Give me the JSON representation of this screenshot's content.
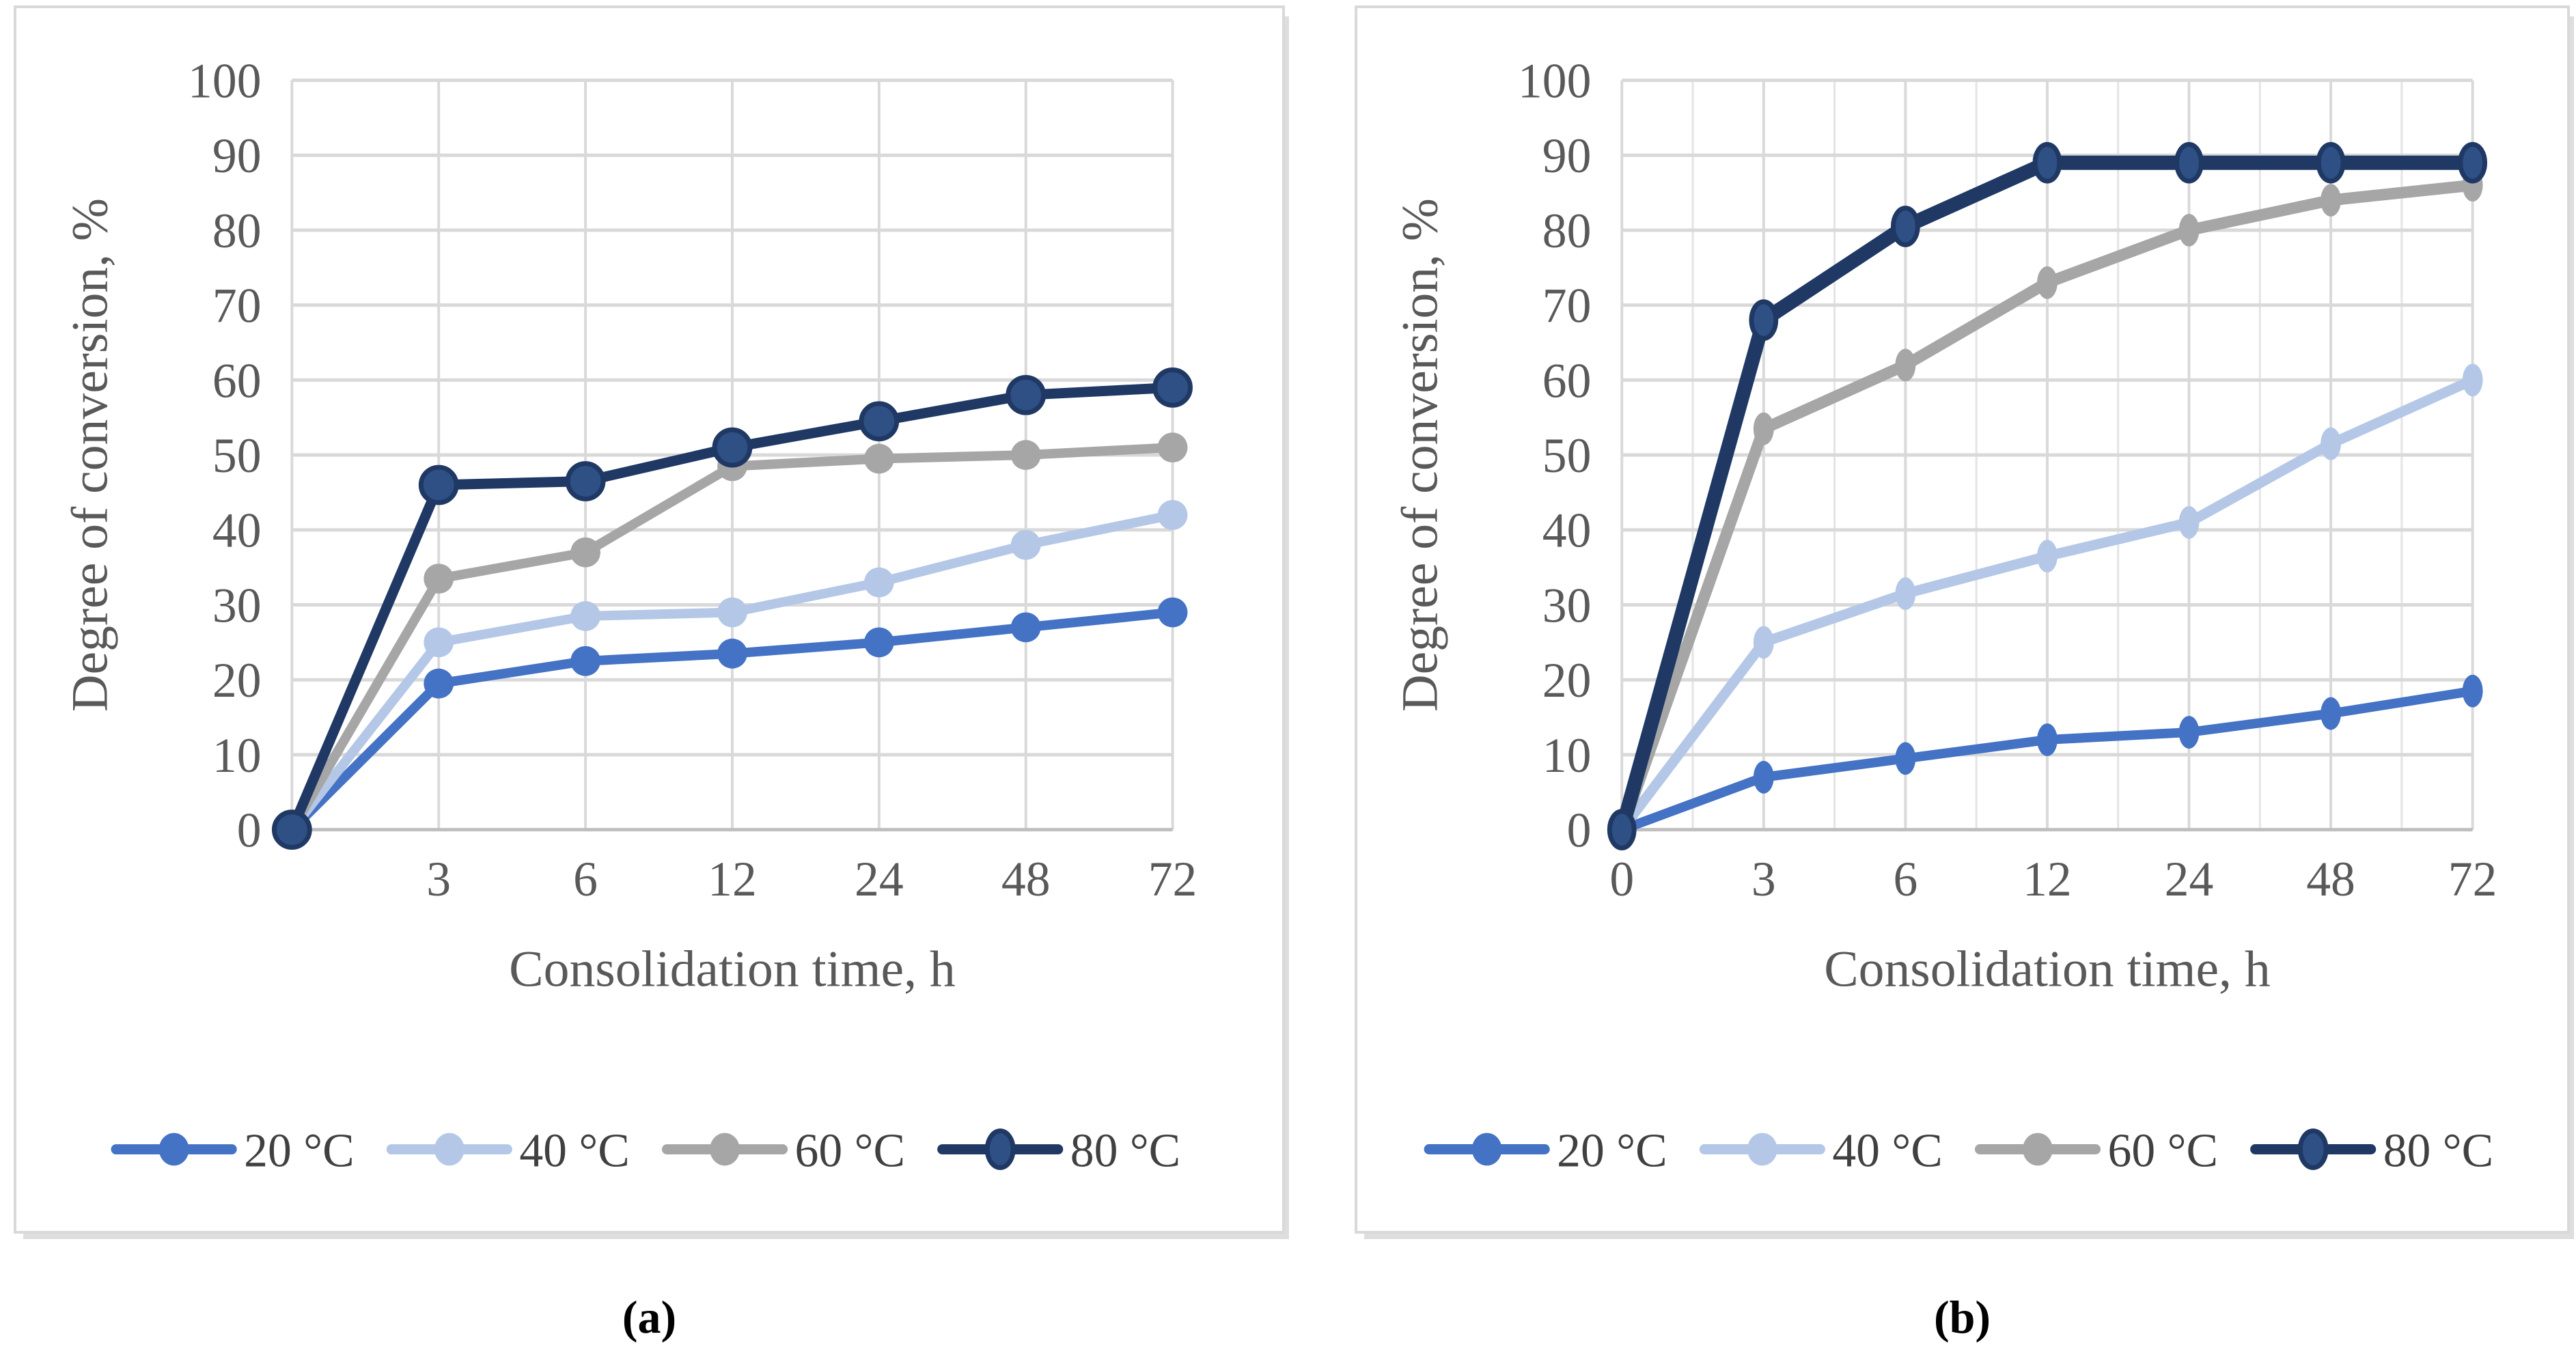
{
  "figure": {
    "captions": {
      "a": "(a)",
      "b": "(b)"
    }
  },
  "colors": {
    "background": "#FFFFFF",
    "panel_border": "#D9D9D9",
    "grid_major": "#D9D9D9",
    "grid_minor": "#E4E4E4",
    "axis_line": "#BFBFBF",
    "tick_text": "#595959",
    "axis_title_text": "#595959",
    "legend_text": "#404040",
    "caption_text": "#000000",
    "series_20c": "#4472C4",
    "series_40c": "#B4C7E7",
    "series_60c": "#A6A6A6",
    "series_80c_line": "#1F3864",
    "series_80c_marker_fill": "#2E5084"
  },
  "chart_data": [
    {
      "id": "a",
      "type": "line",
      "title": "",
      "xlabel": "Consolidation time, h",
      "ylabel": "Degree of conversion, %",
      "x": [
        0,
        3,
        6,
        12,
        24,
        48,
        72
      ],
      "x_tick_labels": [
        "",
        "3",
        "6",
        "12",
        "24",
        "48",
        "72"
      ],
      "y_ticks": [
        0,
        10,
        20,
        30,
        40,
        50,
        60,
        70,
        80,
        90,
        100
      ],
      "ylim": [
        0,
        100
      ],
      "grid": {
        "horizontal": true,
        "vertical_major": true,
        "vertical_minor": false
      },
      "legend_position": "bottom",
      "series": [
        {
          "name": "20 °C",
          "color": "#4472C4",
          "values": [
            0,
            19.5,
            22.5,
            23.5,
            25,
            27,
            29
          ]
        },
        {
          "name": "40 °C",
          "color": "#B4C7E7",
          "values": [
            0,
            25,
            28.5,
            29,
            33,
            38,
            42
          ]
        },
        {
          "name": "60 °C",
          "color": "#A6A6A6",
          "values": [
            0,
            33.5,
            37,
            48.5,
            49.5,
            50,
            51
          ]
        },
        {
          "name": "80 °C",
          "color": "#1F3864",
          "marker_fill": "#2E5084",
          "values": [
            0,
            46,
            46.5,
            51,
            54.5,
            58,
            59
          ]
        }
      ]
    },
    {
      "id": "b",
      "type": "line",
      "title": "",
      "xlabel": "Consolidation time, h",
      "ylabel": "Degree of conversion, %",
      "x": [
        0,
        3,
        6,
        12,
        24,
        48,
        72
      ],
      "x_tick_labels": [
        "0",
        "3",
        "6",
        "12",
        "24",
        "48",
        "72"
      ],
      "y_ticks": [
        0,
        10,
        20,
        30,
        40,
        50,
        60,
        70,
        80,
        90,
        100
      ],
      "ylim": [
        0,
        100
      ],
      "grid": {
        "horizontal": true,
        "vertical_major": true,
        "vertical_minor": true
      },
      "legend_position": "bottom",
      "series": [
        {
          "name": "20 °C",
          "color": "#4472C4",
          "values": [
            0,
            7,
            9.5,
            12,
            13,
            15.5,
            18.5
          ]
        },
        {
          "name": "40 °C",
          "color": "#B4C7E7",
          "values": [
            0,
            25,
            31.5,
            36.5,
            41,
            51.5,
            60
          ]
        },
        {
          "name": "60 °C",
          "color": "#A6A6A6",
          "values": [
            0,
            53.5,
            62,
            73,
            80,
            84,
            86
          ]
        },
        {
          "name": "80 °C",
          "color": "#1F3864",
          "marker_fill": "#2E5084",
          "values": [
            0,
            68,
            80.5,
            89,
            89,
            89,
            89
          ]
        }
      ]
    }
  ]
}
